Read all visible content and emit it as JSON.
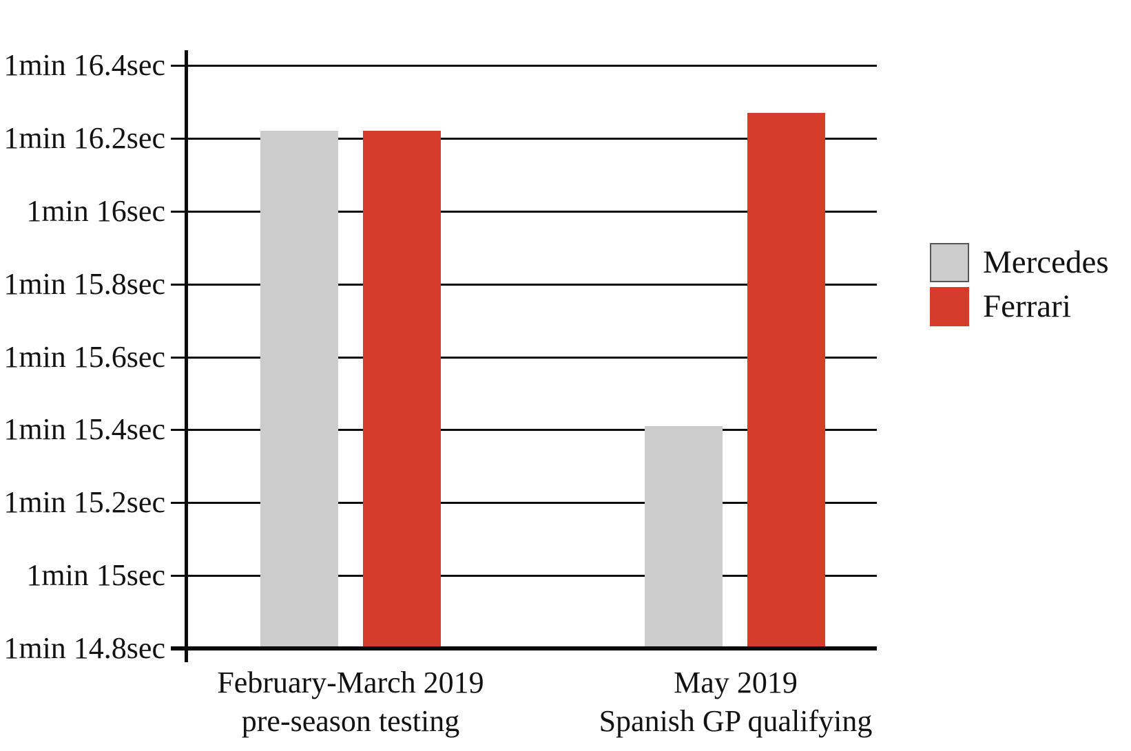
{
  "chart_data": {
    "type": "bar",
    "title": "",
    "xlabel": "",
    "ylabel": "",
    "grid": true,
    "categories": [
      {
        "label_lines": [
          "February-March 2019",
          "pre-season testing"
        ]
      },
      {
        "label_lines": [
          "May 2019",
          "Spanish GP qualifying"
        ]
      }
    ],
    "series": [
      {
        "name": "Mercedes",
        "color": "#cccccc",
        "swatch_border": "#55565a",
        "values_sec": [
          76.22,
          75.41
        ]
      },
      {
        "name": "Ferrari",
        "color": "#d63c2b",
        "swatch_border": "",
        "values_sec": [
          76.22,
          76.27
        ]
      }
    ],
    "y_axis": {
      "min_sec": 74.8,
      "max_sec": 76.4,
      "step_sec": 0.2,
      "ticks": [
        {
          "label": "1min 16.4sec",
          "sec": 76.4
        },
        {
          "label": "1min 16.2sec",
          "sec": 76.2
        },
        {
          "label": "1min 16sec",
          "sec": 76.0
        },
        {
          "label": "1min 15.8sec",
          "sec": 75.8
        },
        {
          "label": "1min 15.6sec",
          "sec": 75.6
        },
        {
          "label": "1min 15.4sec",
          "sec": 75.4
        },
        {
          "label": "1min 15.2sec",
          "sec": 75.2
        },
        {
          "label": "1min 15sec",
          "sec": 75.0
        },
        {
          "label": "1min 14.8sec",
          "sec": 74.8
        }
      ]
    },
    "legend": {
      "position": "right"
    }
  }
}
